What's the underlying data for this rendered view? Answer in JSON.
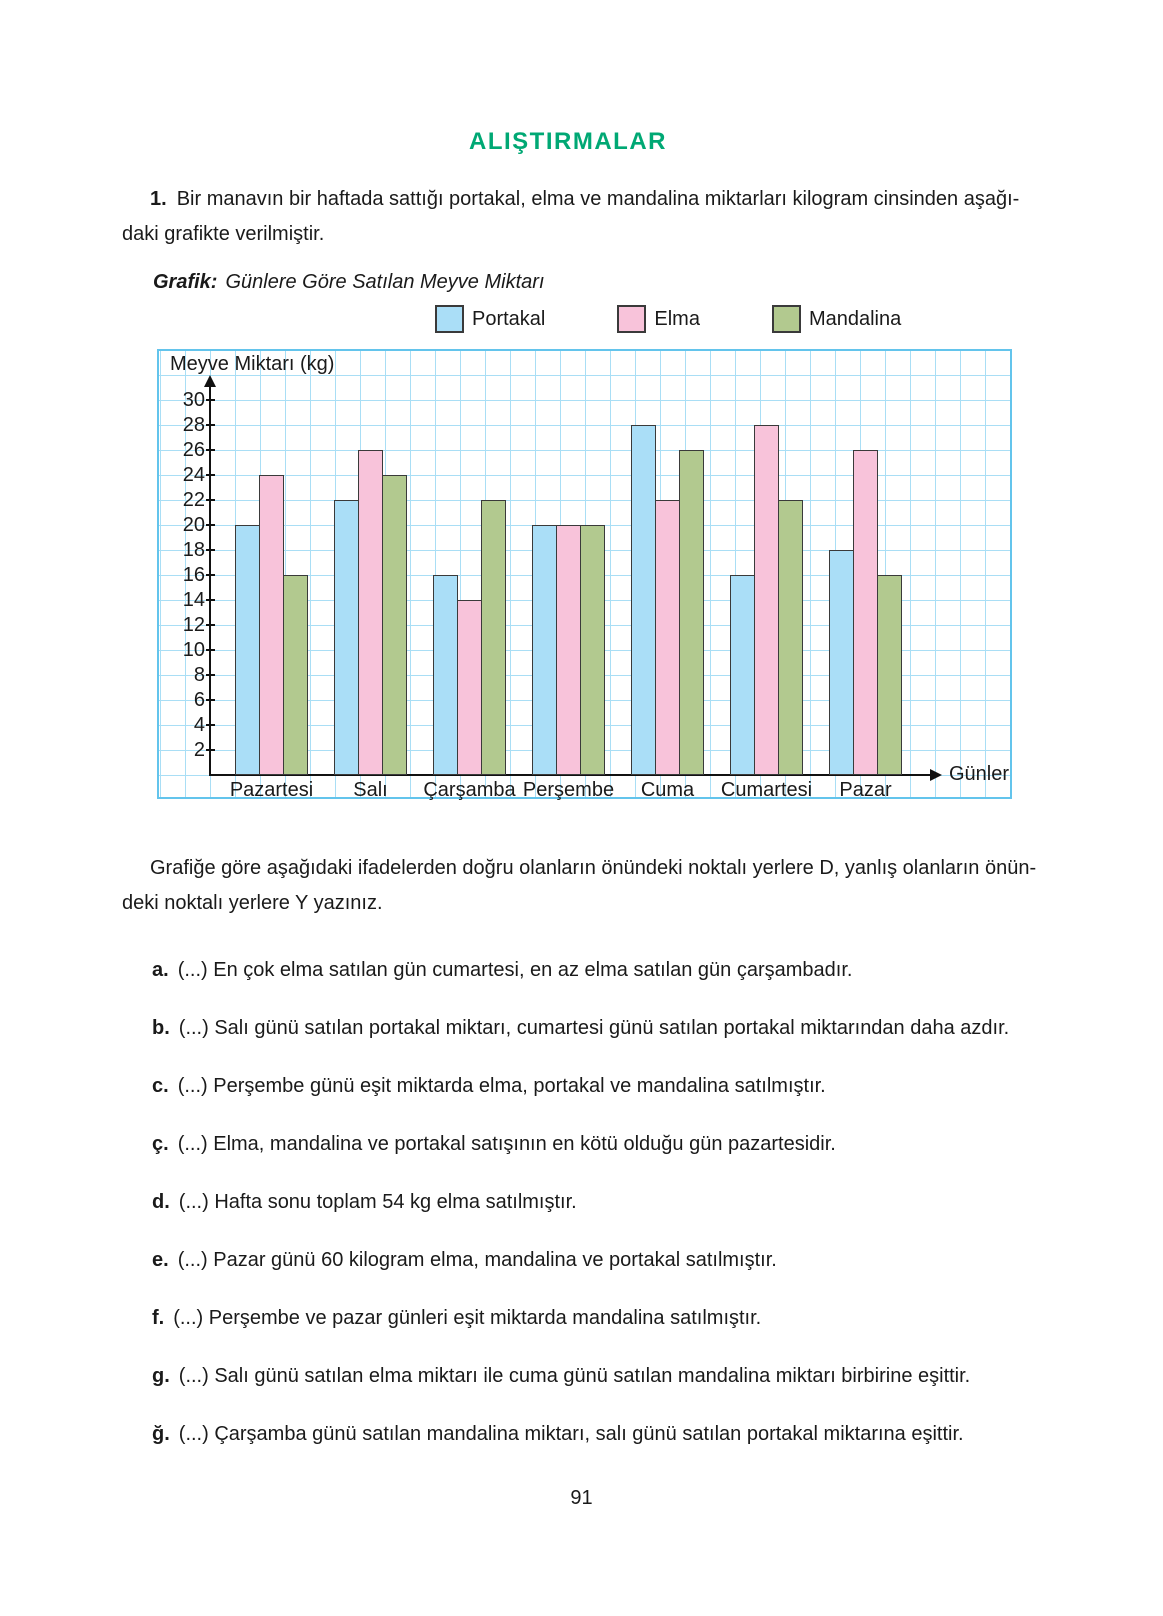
{
  "title": "ALIŞTIRMALAR",
  "intro": {
    "number": "1.",
    "line1": "Bir manavın bir haftada sattığı portakal, elma ve mandalina miktarları kilogram cinsinden aşağı-",
    "line2": "daki grafikte verilmiştir."
  },
  "chart_data": {
    "type": "bar",
    "title_label": "Grafik:",
    "title_text": "Günlere Göre Satılan Meyve Miktarı",
    "ylabel": "Meyve Miktarı (kg)",
    "xlabel": "Günler",
    "categories": [
      "Pazartesi",
      "Salı",
      "Çarşamba",
      "Perşembe",
      "Cuma",
      "Cumartesi",
      "Pazar"
    ],
    "series": [
      {
        "name": "Portakal",
        "color": "#aadef7",
        "values": [
          20,
          22,
          16,
          20,
          28,
          16,
          18
        ]
      },
      {
        "name": "Elma",
        "color": "#f8c3da",
        "values": [
          24,
          26,
          14,
          20,
          22,
          28,
          26
        ]
      },
      {
        "name": "Mandalina",
        "color": "#b2c98f",
        "values": [
          16,
          24,
          22,
          20,
          26,
          22,
          16
        ]
      }
    ],
    "ylim": [
      0,
      30
    ],
    "ytick_step": 2,
    "grid": true,
    "legend_position": "top"
  },
  "instructions": {
    "line1": "Grafiğe göre aşağıdaki ifadelerden doğru olanların önündeki noktalı yerlere D, yanlış olanların önün-",
    "line2": "deki noktalı yerlere Y yazınız."
  },
  "items": [
    {
      "label": "a.",
      "text": "(...) En çok elma satılan gün cumartesi, en az elma satılan gün çarşambadır."
    },
    {
      "label": "b.",
      "text": "(...) Salı günü satılan portakal miktarı, cumartesi günü satılan portakal miktarından daha azdır."
    },
    {
      "label": "c.",
      "text": "(...) Perşembe günü eşit miktarda elma, portakal ve mandalina satılmıştır."
    },
    {
      "label": "ç.",
      "text": "(...) Elma, mandalina ve portakal satışının en kötü olduğu gün pazartesidir."
    },
    {
      "label": "d.",
      "text": "(...) Hafta sonu toplam 54 kg elma satılmıştır."
    },
    {
      "label": "e.",
      "text": "(...) Pazar günü 60 kilogram elma, mandalina ve portakal satılmıştır."
    },
    {
      "label": "f.",
      "text": "(...) Perşembe ve pazar günleri eşit miktarda mandalina satılmıştır."
    },
    {
      "label": "g.",
      "text": "(...) Salı günü satılan elma miktarı ile cuma günü satılan mandalina miktarı birbirine eşittir."
    },
    {
      "label": "ğ.",
      "text": "(...) Çarşamba günü satılan mandalina miktarı, salı günü satılan portakal miktarına eşittir."
    }
  ],
  "page_number": "91",
  "colors": {
    "title_green": "#00a874",
    "grid_line": "#a9def5",
    "chart_border": "#63c4ec",
    "bar_outline": "#3a3a3a",
    "text": "#1a1a1a"
  }
}
